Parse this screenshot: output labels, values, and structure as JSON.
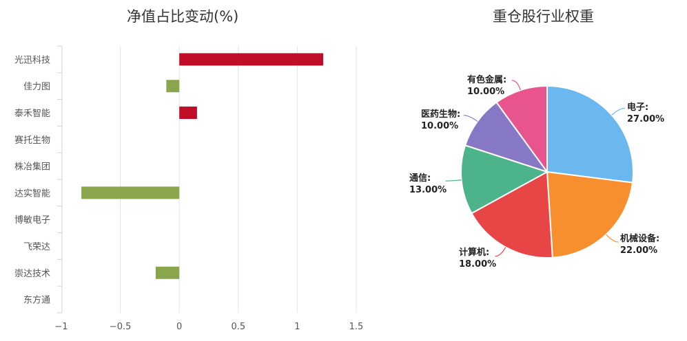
{
  "chart_data": [
    {
      "type": "bar",
      "orientation": "horizontal",
      "title": "净值占比变动(%)",
      "categories": [
        "光迅科技",
        "佳力图",
        "泰禾智能",
        "赛托生物",
        "株冶集团",
        "达实智能",
        "博敏电子",
        "飞荣达",
        "崇达技术",
        "东方通"
      ],
      "values": [
        1.22,
        -0.11,
        0.15,
        0,
        0,
        -0.83,
        0,
        0,
        -0.2,
        0
      ],
      "xlim": [
        -1,
        1.5
      ],
      "xticks": [
        "-1",
        "-0.5",
        "0",
        "0.5",
        "1",
        "1.5"
      ],
      "xlabel": "",
      "ylabel": "",
      "grid": true,
      "positive_color": "#c10e28",
      "negative_color": "#8aa64d"
    },
    {
      "type": "pie",
      "title": "重仓股行业权重",
      "labels": [
        "电子",
        "机械设备",
        "计算机",
        "通信",
        "医药生物",
        "有色金属"
      ],
      "values": [
        27.0,
        22.0,
        18.0,
        13.0,
        10.0,
        10.0
      ],
      "value_labels": [
        "27.00%",
        "22.00%",
        "18.00%",
        "13.00%",
        "10.00%",
        "10.00%"
      ],
      "colors": [
        "#6bb8f0",
        "#f88f2e",
        "#e84646",
        "#4db38a",
        "#8678c4",
        "#e8548e"
      ]
    }
  ]
}
